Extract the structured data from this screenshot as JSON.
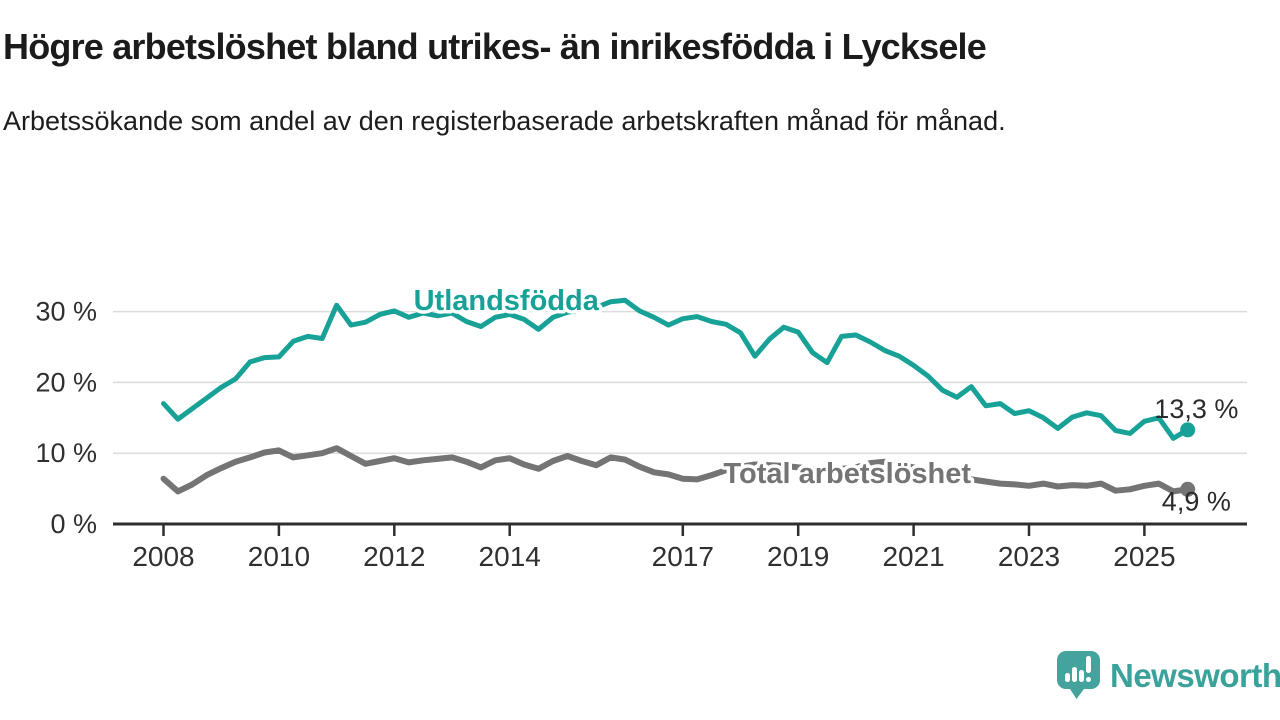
{
  "header": {
    "title": "Högre arbetslöshet bland utrikes- än inrikesfödda i Lycksele",
    "subtitle": "Arbetssökande som andel av den registerbaserade arbetskraften månad för månad."
  },
  "footer": {
    "brand": "Newsworthy",
    "brand_color": "#3aa29b"
  },
  "colors": {
    "accent_teal": "#18a197",
    "series_gray": "#747474",
    "axis_line": "#2e2e2e",
    "tick_text": "#303030",
    "gridline": "#dcdcdc",
    "value_label": "#2b2b2b"
  },
  "chart_data": {
    "type": "line",
    "grid": "horizontal",
    "legend_position": "inline-labels",
    "x_range": [
      2007.125,
      2026.78
    ],
    "y_range": [
      0,
      36
    ],
    "x_ticks": {
      "values": [
        2008,
        2010,
        2012,
        2014,
        2017,
        2019,
        2021,
        2023,
        2025
      ],
      "labels": [
        "2008",
        "2010",
        "2012",
        "2014",
        "2017",
        "2019",
        "2021",
        "2023",
        "2025"
      ]
    },
    "y_ticks": {
      "values": [
        0,
        10,
        20,
        30
      ],
      "labels": [
        "0 %",
        "10 %",
        "20 %",
        "30 %"
      ]
    },
    "x_start": 2008.0,
    "x_step": 0.25,
    "series": [
      {
        "name": "Utlandsfödda",
        "color": "#18a197",
        "stroke_width": 5,
        "end_dot": true,
        "last_value_display": "13,3 %",
        "label": {
          "text": "Utlandsfödda",
          "x": 2013.94,
          "y": 30.2
        },
        "values": [
          17.0,
          14.8,
          16.3,
          17.8,
          19.3,
          20.5,
          22.9,
          23.5,
          23.6,
          25.8,
          26.5,
          26.2,
          30.9,
          28.1,
          28.5,
          29.6,
          30.1,
          29.2,
          29.8,
          29.4,
          29.8,
          28.6,
          27.9,
          29.2,
          29.6,
          28.9,
          27.5,
          29.2,
          29.9,
          30.2,
          30.6,
          31.4,
          31.6,
          30.1,
          29.2,
          28.1,
          29.0,
          29.3,
          28.6,
          28.2,
          27.0,
          23.7,
          26.1,
          27.8,
          27.1,
          24.2,
          22.8,
          26.5,
          26.7,
          25.7,
          24.5,
          23.7,
          22.4,
          20.9,
          18.9,
          17.9,
          19.4,
          16.7,
          17.0,
          15.6,
          16.0,
          15.0,
          13.5,
          15.1,
          15.7,
          15.3,
          13.2,
          12.8,
          14.5,
          15.0,
          12.1,
          13.3
        ]
      },
      {
        "name": "Total arbetslöshet",
        "color": "#747474",
        "stroke_width": 6,
        "end_dot": true,
        "last_value_display": "4,9 %",
        "label": {
          "text": "Total arbetslöshet",
          "x": 2019.85,
          "y": 5.8
        },
        "values": [
          6.4,
          4.6,
          5.6,
          6.9,
          7.9,
          8.8,
          9.4,
          10.1,
          10.4,
          9.4,
          9.7,
          10.0,
          10.7,
          9.6,
          8.5,
          8.9,
          9.3,
          8.7,
          9.0,
          9.2,
          9.4,
          8.8,
          8.0,
          9.0,
          9.3,
          8.4,
          7.8,
          8.9,
          9.6,
          8.9,
          8.3,
          9.4,
          9.1,
          8.1,
          7.3,
          7.0,
          6.4,
          6.3,
          6.9,
          7.6,
          8.1,
          8.4,
          8.3,
          8.2,
          8.0,
          7.8,
          7.6,
          7.8,
          8.0,
          8.6,
          8.8,
          8.4,
          8.0,
          7.6,
          7.0,
          6.6,
          6.3,
          6.0,
          5.7,
          5.6,
          5.4,
          5.7,
          5.3,
          5.5,
          5.4,
          5.7,
          4.7,
          4.9,
          5.4,
          5.7,
          4.6,
          4.9
        ]
      }
    ],
    "annotations": [
      {
        "text": "13,3 %",
        "x": 2025.9,
        "y": 15.0,
        "color": "#2b2b2b"
      },
      {
        "text": "4,9 %",
        "x": 2025.9,
        "y": 1.9,
        "color": "#2b2b2b"
      }
    ]
  }
}
